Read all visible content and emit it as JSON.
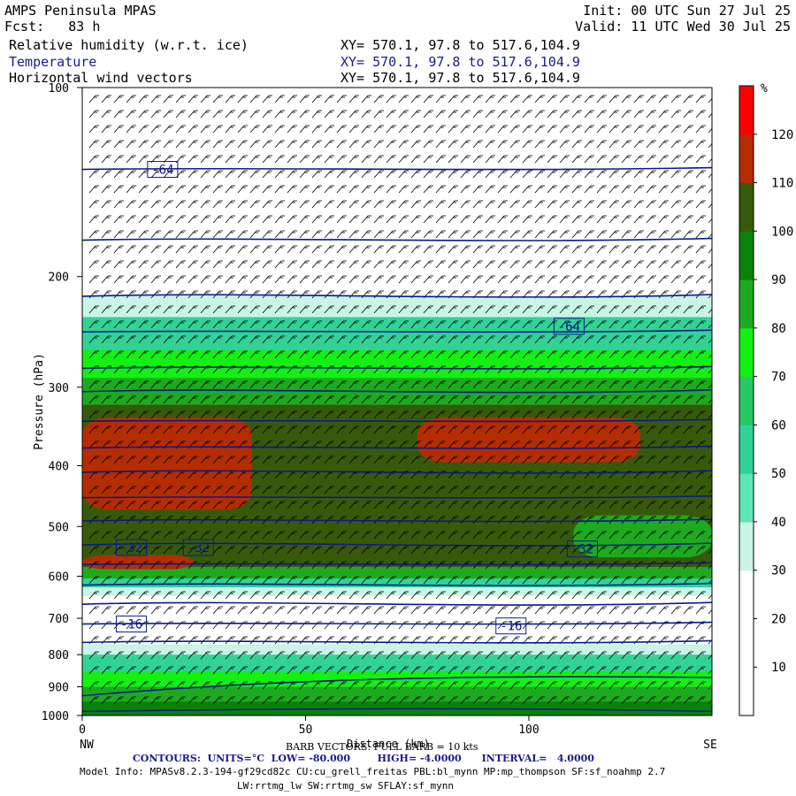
{
  "header": {
    "title": "AMPS Peninsula MPAS",
    "forecast": "Fcst:   83 h",
    "init": "Init: 00 UTC Sun 27 Jul 25",
    "valid": "Valid: 11 UTC Wed 30 Jul 25",
    "fields": [
      {
        "name": "Relative humidity (w.r.t. ice)",
        "xy": "XY= 570.1, 97.8 to 517.6,104.9"
      },
      {
        "name": "Temperature",
        "xy": "XY= 570.1, 97.8 to 517.6,104.9"
      },
      {
        "name": "Horizontal wind vectors",
        "xy": "XY= 570.1, 97.8 to 517.6,104.9"
      }
    ]
  },
  "chart_data": {
    "type": "heatmap",
    "ylabel": "Pressure (hPa)",
    "xlabel": "Distance (km)",
    "x_left_label": "NW",
    "x_right_label": "SE",
    "xlim": [
      0,
      141
    ],
    "ylim": [
      1000,
      100
    ],
    "y_scale": "log",
    "x_ticks": [
      0,
      50,
      100
    ],
    "y_ticks": [
      100,
      200,
      300,
      400,
      500,
      600,
      700,
      800,
      900,
      1000
    ],
    "colorbar": {
      "unit": "%",
      "levels": [
        10,
        20,
        30,
        40,
        50,
        60,
        70,
        80,
        90,
        100,
        110,
        120
      ],
      "colors": [
        "#ffffff",
        "#ffffff",
        "#ffffff",
        "#c8f5e6",
        "#5ee6b4",
        "#32d296",
        "#28c864",
        "#14f014",
        "#1eaa1e",
        "#0a820a",
        "#375a0a",
        "#b42d00",
        "#ff0000"
      ]
    },
    "rh_bands": [
      {
        "p_top": 100,
        "p_bot": 215,
        "level": 0
      },
      {
        "p_top": 215,
        "p_bot": 232,
        "level": 3
      },
      {
        "p_top": 232,
        "p_bot": 262,
        "level": 5
      },
      {
        "p_top": 262,
        "p_bot": 290,
        "level": 7
      },
      {
        "p_top": 290,
        "p_bot": 320,
        "level": 8
      },
      {
        "p_top": 320,
        "p_bot": 580,
        "level": 10
      },
      {
        "p_top": 580,
        "p_bot": 605,
        "level": 8
      },
      {
        "p_top": 605,
        "p_bot": 625,
        "level": 5
      },
      {
        "p_top": 625,
        "p_bot": 645,
        "level": 3
      },
      {
        "p_top": 645,
        "p_bot": 770,
        "level": 0
      },
      {
        "p_top": 770,
        "p_bot": 800,
        "level": 3
      },
      {
        "p_top": 800,
        "p_bot": 850,
        "level": 5
      },
      {
        "p_top": 850,
        "p_bot": 900,
        "level": 7
      },
      {
        "p_top": 900,
        "p_bot": 950,
        "level": 8
      },
      {
        "p_top": 950,
        "p_bot": 1000,
        "level": 9
      }
    ],
    "rh_patches": [
      {
        "x0": 0,
        "x1": 38,
        "p_top": 335,
        "p_bot": 470,
        "level": 11
      },
      {
        "x0": 75,
        "x1": 125,
        "p_top": 335,
        "p_bot": 395,
        "level": 11
      },
      {
        "x0": 0,
        "x1": 25,
        "p_top": 555,
        "p_bot": 585,
        "level": 11
      },
      {
        "x0": 110,
        "x1": 141,
        "p_top": 480,
        "p_bot": 560,
        "level": 8
      }
    ],
    "isotherms": [
      {
        "p": 135
      },
      {
        "p": 175
      },
      {
        "p": 215
      },
      {
        "p": 245
      },
      {
        "p": 280
      },
      {
        "p": 305
      },
      {
        "p": 340
      },
      {
        "p": 375
      },
      {
        "p": 410
      },
      {
        "p": 450
      },
      {
        "p": 490
      },
      {
        "p": 535
      },
      {
        "p": 575
      },
      {
        "p": 620
      },
      {
        "p": 665
      },
      {
        "p": 715
      },
      {
        "p": 765
      }
    ],
    "isotherm_labels": [
      {
        "text": "-64",
        "x": 18,
        "p": 135
      },
      {
        "text": "-64",
        "x": 109,
        "p": 240
      },
      {
        "text": "-32",
        "x": 11,
        "p": 540
      },
      {
        "text": "-32",
        "x": 26,
        "p": 540
      },
      {
        "text": "-32",
        "x": 112,
        "p": 543
      },
      {
        "text": "-16",
        "x": 11,
        "p": 715
      },
      {
        "text": "-16",
        "x": 96,
        "p": 720
      }
    ],
    "footer": {
      "barb": "BARB VECTORS: FULL BARB = 10 kts",
      "contours": "CONTOURS:  UNITS=°C  LOW= -80.000        HIGH= -4.0000      INTERVAL=   4.0000",
      "model1": "Model Info: MPASv8.2.3-194-gf29cd82c CU:cu_grell_freitas PBL:bl_mynn MP:mp_thompson SF:sf_noahmp 2.7",
      "model2": "LW:rrtmg_lw SW:rrtmg_sw SFLAY:sf_mynn"
    }
  }
}
